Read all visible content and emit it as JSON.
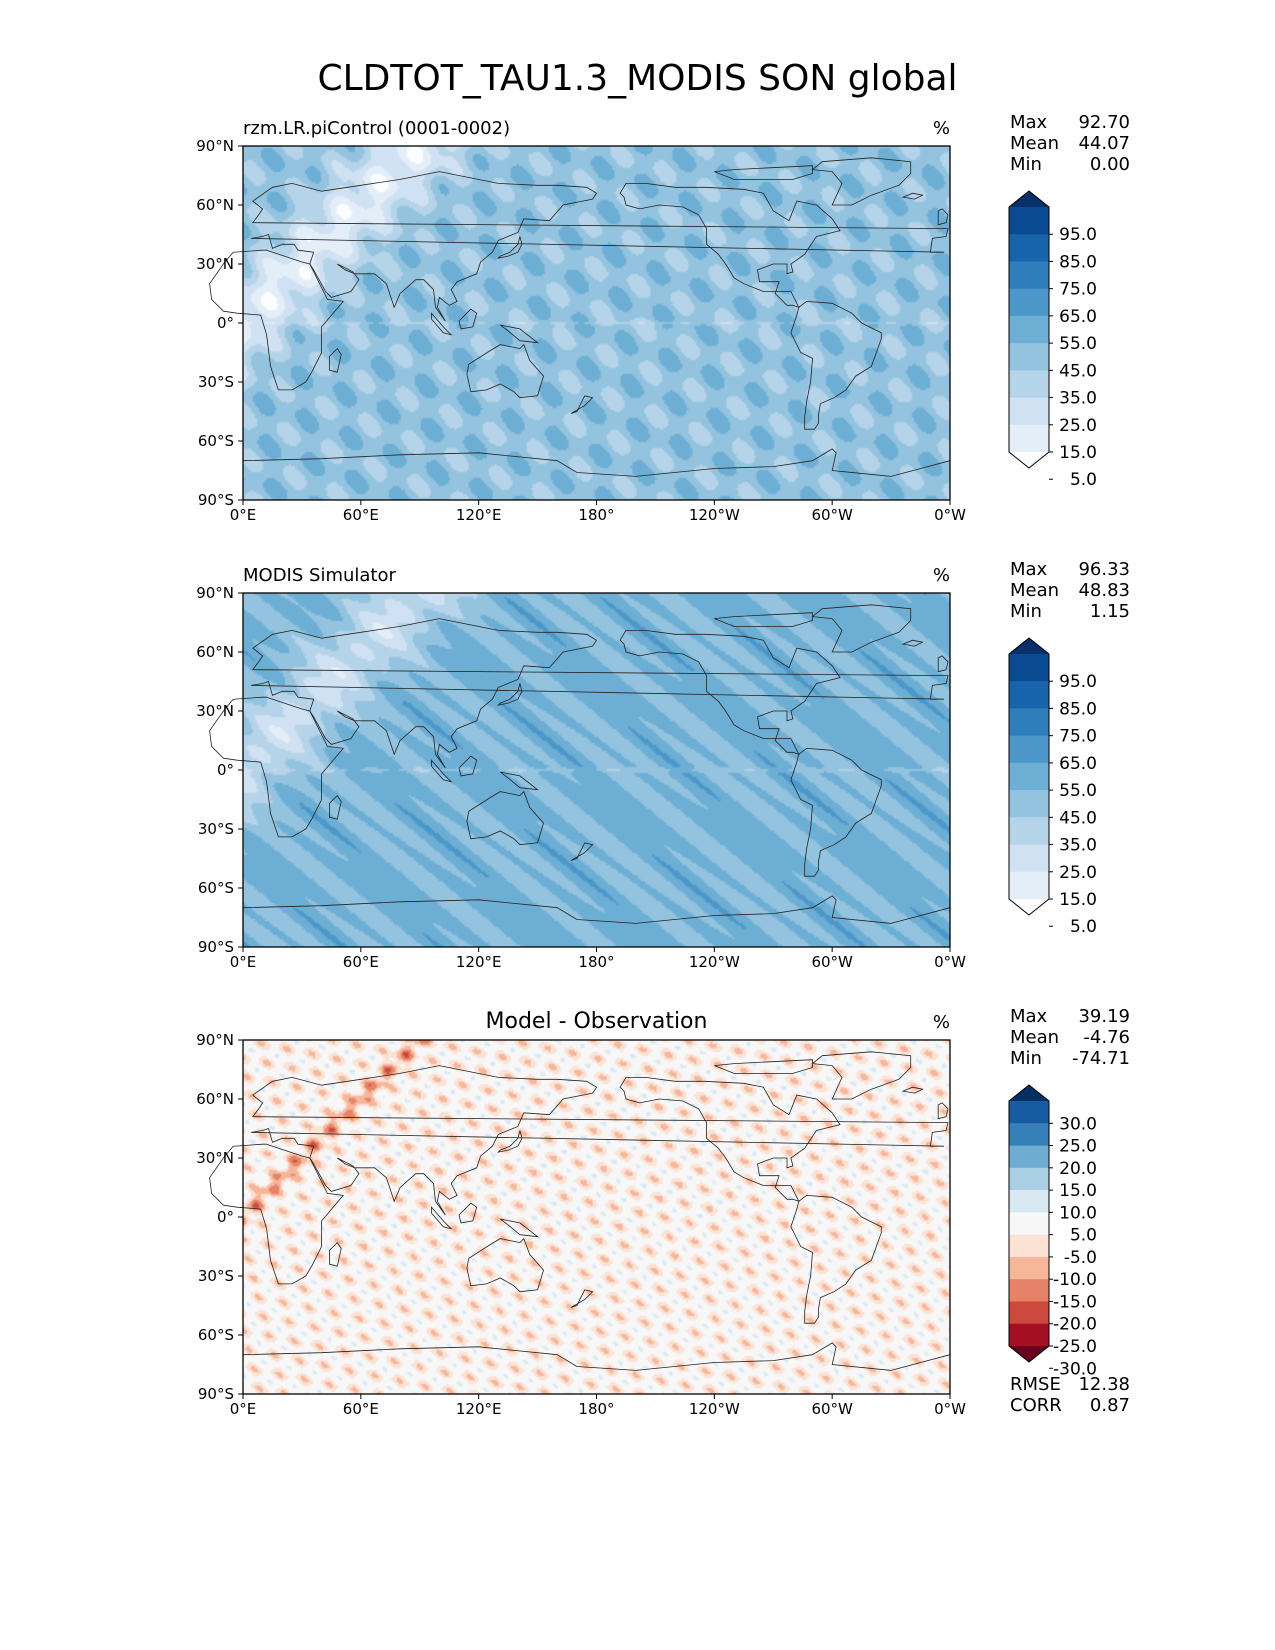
{
  "title": "CLDTOT_TAU1.3_MODIS SON global",
  "colors": {
    "blues": [
      "#fbfdff",
      "#e3eef8",
      "#cfe1f2",
      "#b5d4e9",
      "#93c3df",
      "#6daed5",
      "#4b97c9",
      "#2f7ebc",
      "#1864aa",
      "#0a4a90",
      "#08306b"
    ],
    "diverging": [
      "#67001f",
      "#a50f22",
      "#cc4a3d",
      "#e58267",
      "#f5b699",
      "#fbe2d5",
      "#f7f7f7",
      "#d9e9f1",
      "#a9cfe5",
      "#6eacd1",
      "#3580b9",
      "#175ca1",
      "#053061"
    ],
    "land_border": "#222222"
  },
  "chart_data": [
    {
      "id": "test",
      "type": "heatmap",
      "projection": "PlateCarree global map",
      "title_left": "rzm.LR.piControl (0001-0002)",
      "title_center": "",
      "units": "%",
      "stats": [
        {
          "label": "Max",
          "value": "92.70"
        },
        {
          "label": "Mean",
          "value": "44.07"
        },
        {
          "label": "Min",
          "value": "0.00"
        }
      ],
      "extra_stats": [],
      "colorbar": {
        "labels": [
          "95.0",
          "85.0",
          "75.0",
          "65.0",
          "55.0",
          "45.0",
          "35.0",
          "25.0",
          "15.0",
          "5.0"
        ],
        "extend": "both",
        "palette": "blues"
      },
      "xticks": [
        "0°E",
        "60°E",
        "120°E",
        "180°",
        "120°W",
        "60°W",
        "0°W"
      ],
      "yticks": [
        "90°N",
        "60°N",
        "30°N",
        "0°",
        "30°S",
        "60°S",
        "90°S"
      ],
      "xlim": [
        0,
        360
      ],
      "ylim": [
        -90,
        90
      ]
    },
    {
      "id": "reference",
      "type": "heatmap",
      "projection": "PlateCarree global map",
      "title_left": "MODIS Simulator",
      "title_center": "",
      "units": "%",
      "stats": [
        {
          "label": "Max",
          "value": "96.33"
        },
        {
          "label": "Mean",
          "value": "48.83"
        },
        {
          "label": "Min",
          "value": "1.15"
        }
      ],
      "extra_stats": [],
      "colorbar": {
        "labels": [
          "95.0",
          "85.0",
          "75.0",
          "65.0",
          "55.0",
          "45.0",
          "35.0",
          "25.0",
          "15.0",
          "5.0"
        ],
        "extend": "both",
        "palette": "blues"
      },
      "xticks": [
        "0°E",
        "60°E",
        "120°E",
        "180°",
        "120°W",
        "60°W",
        "0°W"
      ],
      "yticks": [
        "90°N",
        "60°N",
        "30°N",
        "0°",
        "30°S",
        "60°S",
        "90°S"
      ],
      "xlim": [
        0,
        360
      ],
      "ylim": [
        -90,
        90
      ]
    },
    {
      "id": "difference",
      "type": "heatmap",
      "projection": "PlateCarree global map",
      "title_left": "",
      "title_center": "Model - Observation",
      "units": "%",
      "stats": [
        {
          "label": "Max",
          "value": "39.19"
        },
        {
          "label": "Mean",
          "value": "-4.76"
        },
        {
          "label": "Min",
          "value": "-74.71"
        }
      ],
      "extra_stats": [
        {
          "label": "RMSE",
          "value": "12.38"
        },
        {
          "label": "CORR",
          "value": "0.87"
        }
      ],
      "colorbar": {
        "labels": [
          "30.0",
          "25.0",
          "20.0",
          "15.0",
          "10.0",
          "5.0",
          "-5.0",
          "-10.0",
          "-15.0",
          "-20.0",
          "-25.0",
          "-30.0"
        ],
        "extend": "both",
        "palette": "diverging"
      },
      "xticks": [
        "0°E",
        "60°E",
        "120°E",
        "180°",
        "120°W",
        "60°W",
        "0°W"
      ],
      "yticks": [
        "90°N",
        "60°N",
        "30°N",
        "0°",
        "30°S",
        "60°S",
        "90°S"
      ],
      "xlim": [
        0,
        360
      ],
      "ylim": [
        -90,
        90
      ]
    }
  ]
}
